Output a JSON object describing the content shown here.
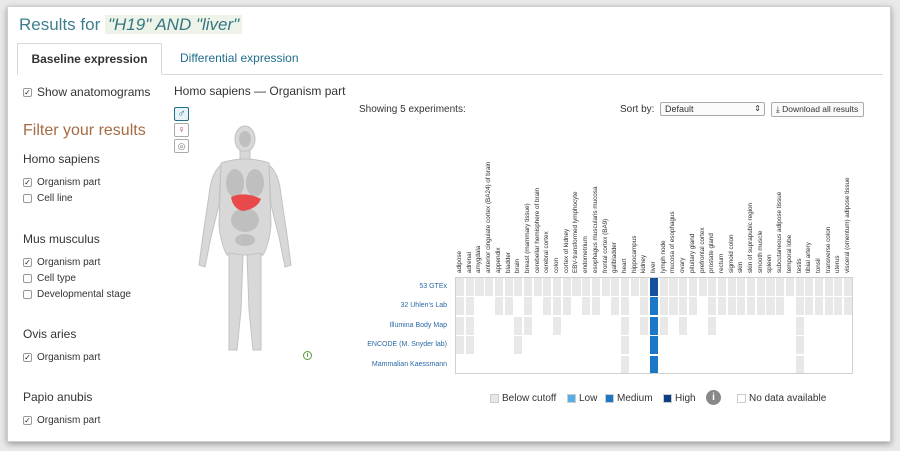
{
  "results_title": {
    "prefix": "Results for",
    "query": "\"H19\" AND \"liver\""
  },
  "tabs": [
    {
      "label": "Baseline expression",
      "active": true
    },
    {
      "label": "Differential expression",
      "active": false
    }
  ],
  "sidebar": {
    "show_anatomograms": {
      "label": "Show anatomograms",
      "checked": true
    },
    "filter_title": "Filter your results",
    "species": [
      {
        "name": "Homo sapiens",
        "options": [
          {
            "label": "Organism part",
            "checked": true
          },
          {
            "label": "Cell line",
            "checked": false
          }
        ]
      },
      {
        "name": "Mus musculus",
        "options": [
          {
            "label": "Organism part",
            "checked": true
          },
          {
            "label": "Cell type",
            "checked": false
          },
          {
            "label": "Developmental stage",
            "checked": false
          }
        ]
      },
      {
        "name": "Ovis aries",
        "options": [
          {
            "label": "Organism part",
            "checked": true
          }
        ]
      },
      {
        "name": "Papio anubis",
        "options": [
          {
            "label": "Organism part",
            "checked": true
          }
        ]
      }
    ]
  },
  "main": {
    "title": "Homo sapiens — Organism part",
    "showing": "Showing 5 experiments:",
    "sort_label": "Sort by:",
    "sort_value": "Default",
    "download_label": "Download all results",
    "gender_icons": [
      "male-icon",
      "female-icon",
      "brain-icon"
    ]
  },
  "heatmap": {
    "columns": [
      "adipose",
      "adrenal",
      "amygdala",
      "anterior cingulate cortex (BA24) of brain",
      "appendix",
      "bladder",
      "brain",
      "breast (mammary tissue)",
      "cerebellar hemisphere of brain",
      "cerebral cortex",
      "colon",
      "cortex of kidney",
      "EBV-transformed lymphocyte",
      "endometrium",
      "esophagus muscularis mucosa",
      "frontal cortex (BA9)",
      "gallbladder",
      "heart",
      "hippocampus",
      "kidney",
      "liver",
      "lymph node",
      "mucosa of esophagus",
      "ovary",
      "pituitary gland",
      "prefrontal cortex",
      "prostate gland",
      "rectum",
      "sigmoid colon",
      "skin",
      "skin of suprapubic region",
      "smooth muscle",
      "spleen",
      "subcutaneous adipose tissue",
      "temporal lobe",
      "testis",
      "tibial artery",
      "tonsil",
      "transverse colon",
      "uterus",
      "visceral (omentum) adipose tissue"
    ],
    "rows": [
      "53 GTEx",
      "32 Uhlen's Lab",
      "Illumina Body Map",
      "ENCODE (M. Snyder lab)",
      "Mammalian Kaessmann"
    ],
    "row_cells": [
      [
        1,
        1,
        1,
        1,
        1,
        1,
        1,
        1,
        1,
        1,
        1,
        1,
        1,
        1,
        1,
        1,
        1,
        1,
        1,
        1,
        4,
        1,
        1,
        1,
        1,
        1,
        1,
        1,
        1,
        1,
        1,
        1,
        1,
        1,
        1,
        1,
        1,
        1,
        1,
        1,
        1
      ],
      [
        1,
        1,
        0,
        0,
        1,
        1,
        0,
        1,
        0,
        1,
        1,
        1,
        0,
        1,
        1,
        0,
        1,
        1,
        0,
        1,
        3,
        1,
        1,
        1,
        1,
        0,
        1,
        1,
        1,
        1,
        1,
        1,
        1,
        1,
        0,
        1,
        1,
        1,
        1,
        1,
        1
      ],
      [
        1,
        1,
        0,
        0,
        0,
        0,
        1,
        1,
        0,
        0,
        1,
        0,
        0,
        0,
        0,
        0,
        0,
        1,
        0,
        1,
        3,
        1,
        0,
        1,
        0,
        0,
        1,
        0,
        0,
        0,
        0,
        0,
        0,
        0,
        0,
        1,
        0,
        0,
        0,
        0,
        0
      ],
      [
        1,
        1,
        0,
        0,
        0,
        0,
        1,
        0,
        0,
        0,
        0,
        0,
        0,
        0,
        0,
        0,
        0,
        1,
        0,
        0,
        3,
        0,
        0,
        0,
        0,
        0,
        0,
        0,
        0,
        0,
        0,
        0,
        0,
        0,
        0,
        1,
        0,
        0,
        0,
        0,
        0
      ],
      [
        0,
        0,
        0,
        0,
        0,
        0,
        0,
        0,
        0,
        0,
        0,
        0,
        0,
        0,
        0,
        0,
        0,
        1,
        0,
        0,
        3,
        0,
        0,
        0,
        0,
        0,
        0,
        0,
        0,
        0,
        0,
        0,
        0,
        0,
        0,
        1,
        0,
        0,
        0,
        0,
        0
      ]
    ],
    "levels": {
      "0": "#ffffff",
      "1": "#e8e8e8",
      "2": "#65b5e8",
      "3": "#1d77c7",
      "4": "#15509f"
    }
  },
  "legend": [
    {
      "label": "Below cutoff",
      "color": "#e8e8e8"
    },
    {
      "label": "Low",
      "color": "#57aee6"
    },
    {
      "label": "Medium",
      "color": "#1d77c7"
    },
    {
      "label": "High",
      "color": "#0b3f83"
    },
    {
      "label": "No data available",
      "color": "#ffffff"
    }
  ]
}
